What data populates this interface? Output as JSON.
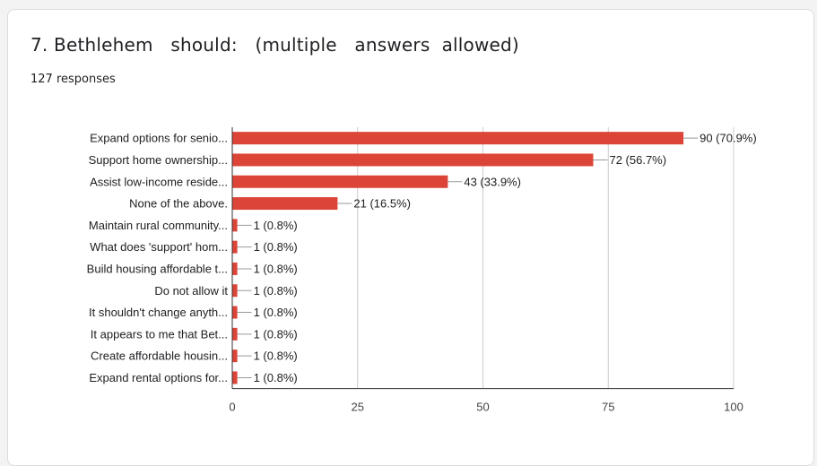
{
  "question": {
    "title": "7. Bethlehem   should:   (multiple   answers  allowed)",
    "responses": "127 responses"
  },
  "colors": {
    "bar": "#dc4437",
    "axis": "#333333",
    "grid": "#cccccc",
    "leader": "#999999"
  },
  "chart_data": {
    "type": "bar",
    "orientation": "horizontal",
    "categories": [
      "Expand options for senio...",
      "Support home ownership...",
      "Assist low-income reside...",
      "None of the above.",
      "Maintain rural community...",
      "What does 'support' hom...",
      "Build housing affordable t...",
      "Do not allow it",
      "It shouldn't change anyth...",
      "It appears to me that Bet...",
      "Create affordable housin...",
      "Expand rental options for..."
    ],
    "values": [
      90,
      72,
      43,
      21,
      1,
      1,
      1,
      1,
      1,
      1,
      1,
      1
    ],
    "data_labels": [
      "90 (70.9%)",
      "72 (56.7%)",
      "43 (33.9%)",
      "21 (16.5%)",
      "1 (0.8%)",
      "1 (0.8%)",
      "1 (0.8%)",
      "1 (0.8%)",
      "1 (0.8%)",
      "1 (0.8%)",
      "1 (0.8%)",
      "1 (0.8%)"
    ],
    "xlim": [
      0,
      100
    ],
    "xticks": [
      0,
      25,
      50,
      75,
      100
    ],
    "grid": true
  }
}
